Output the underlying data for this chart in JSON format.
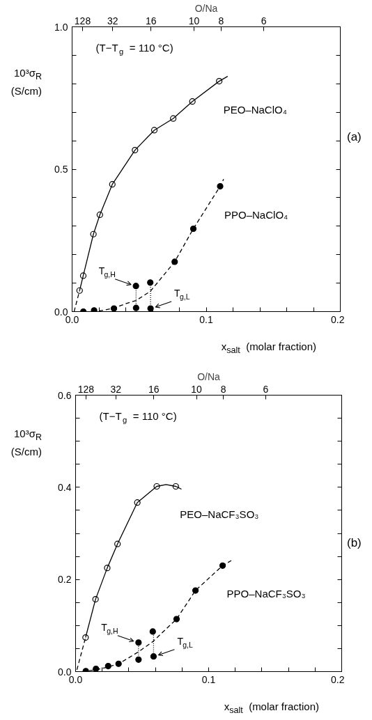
{
  "chart_data": [
    {
      "type": "scatter",
      "xlabel": "x$_{salt}$  (molar fraction)",
      "ylabel": "10³σ$_{R}$\n(S/cm)",
      "x2label": "O/Na",
      "xlim": [
        0,
        0.2
      ],
      "xticks": [
        {
          "value": 0,
          "label": "0.0"
        },
        {
          "value": 0.02,
          "label": null
        },
        {
          "value": 0.04,
          "label": null
        },
        {
          "value": 0.06,
          "label": null
        },
        {
          "value": 0.08,
          "label": null
        },
        {
          "value": 0.1,
          "label": "0.1"
        },
        {
          "value": 0.12,
          "label": null
        },
        {
          "value": 0.14,
          "label": null
        },
        {
          "value": 0.16,
          "label": null
        },
        {
          "value": 0.18,
          "label": null
        },
        {
          "value": 0.2,
          "label": "0.2"
        }
      ],
      "ylim": [
        0,
        1.0
      ],
      "yticks": [
        {
          "value": 0,
          "label": "0.0"
        },
        {
          "value": 0.1,
          "label": null
        },
        {
          "value": 0.2,
          "label": null
        },
        {
          "value": 0.3,
          "label": null
        },
        {
          "value": 0.4,
          "label": null
        },
        {
          "value": 0.5,
          "label": "0.5"
        },
        {
          "value": 0.6,
          "label": null
        },
        {
          "value": 0.7,
          "label": null
        },
        {
          "value": 0.8,
          "label": null
        },
        {
          "value": 0.9,
          "label": null
        },
        {
          "value": 1.0,
          "label": "1.0"
        }
      ],
      "series": [
        {
          "name": "PEO–NaClO₄",
          "color": "#000000",
          "marker": "circle",
          "x": [
            0.0056,
            0.0083,
            0.0159,
            0.0207,
            0.03,
            0.0469,
            0.0613,
            0.0754,
            0.0897,
            0.1097
          ],
          "values": [
            0.074,
            0.126,
            0.272,
            0.34,
            0.447,
            0.567,
            0.637,
            0.678,
            0.738,
            0.809
          ]
        },
        {
          "type": "line",
          "color": "#000000",
          "line_style": "solid",
          "x": [
            0.0056,
            0.0083,
            0.0159,
            0.0207,
            0.03,
            0.0469,
            0.0613,
            0.0754,
            0.0897,
            0.1097,
            0.116
          ],
          "values": [
            0.074,
            0.126,
            0.272,
            0.34,
            0.447,
            0.567,
            0.637,
            0.678,
            0.738,
            0.809,
            0.826
          ]
        },
        {
          "type": "line",
          "color": "#000000",
          "line_style": "dashed",
          "x": [
            0.0015,
            0.0056
          ],
          "values": [
            0.0,
            0.074
          ]
        },
        {
          "name": "PPO–NaClO₄",
          "color": "#000000",
          "marker": "circle",
          "x": [
            0.0084,
            0.0164,
            0.0312,
            0.0477,
            0.0476,
            0.0585,
            0.0583,
            0.0765,
            0.0904,
            0.1104
          ],
          "values": [
            0.0,
            0.004,
            0.011,
            0.013,
            0.09,
            0.011,
            0.102,
            0.175,
            0.291,
            0.44
          ]
        },
        {
          "type": "line",
          "color": "#000000",
          "line_style": "dashed",
          "x": [
            0.02,
            0.0312,
            0.04,
            0.0477,
            0.0583,
            0.0765,
            0.0904,
            0.1104,
            0.113
          ],
          "values": [
            0.002,
            0.012,
            0.028,
            0.039,
            0.071,
            0.175,
            0.291,
            0.44,
            0.465
          ]
        },
        {
          "type": "line",
          "color": "#000000",
          "line_style": "dotted",
          "x": [
            0.0477,
            0.0477
          ],
          "values": [
            0.013,
            0.09
          ]
        },
        {
          "type": "line",
          "color": "#000000",
          "line_style": "dotted",
          "x": [
            0.0585,
            0.0585
          ],
          "values": [
            0.011,
            0.102
          ]
        }
      ],
      "annotations": [
        "(T−T$_{g}$ = 110 °C)",
        "(a)",
        {
          "text": "T$_{g,H}$",
          "x": 0.0476,
          "y": 0.09
        },
        {
          "text": "T$_{g,L}$",
          "x": 0.0585,
          "y": 0.011
        },
        "128",
        "32",
        "16",
        "10",
        "8",
        "6"
      ]
    },
    {
      "type": "scatter",
      "xlabel": "x$_{salt}$  (molar fraction)",
      "ylabel": "10³σ$_{R}$\n(S/cm)",
      "x2label": "O/Na",
      "xlim": [
        0,
        0.2
      ],
      "xticks": [
        {
          "value": 0,
          "label": "0.0"
        },
        {
          "value": 0.02,
          "label": null
        },
        {
          "value": 0.04,
          "label": null
        },
        {
          "value": 0.06,
          "label": null
        },
        {
          "value": 0.08,
          "label": null
        },
        {
          "value": 0.1,
          "label": "0.1"
        },
        {
          "value": 0.12,
          "label": null
        },
        {
          "value": 0.14,
          "label": null
        },
        {
          "value": 0.16,
          "label": null
        },
        {
          "value": 0.18,
          "label": null
        },
        {
          "value": 0.2,
          "label": "0.2"
        }
      ],
      "ylim": [
        0,
        0.6
      ],
      "yticks": [
        {
          "value": 0,
          "label": "0.0"
        },
        {
          "value": 0.05,
          "label": null
        },
        {
          "value": 0.1,
          "label": null
        },
        {
          "value": 0.15,
          "label": null
        },
        {
          "value": 0.2,
          "label": "0.2"
        },
        {
          "value": 0.25,
          "label": null
        },
        {
          "value": 0.3,
          "label": null
        },
        {
          "value": 0.35,
          "label": null
        },
        {
          "value": 0.4,
          "label": "0.4"
        },
        {
          "value": 0.45,
          "label": null
        },
        {
          "value": 0.5,
          "label": null
        },
        {
          "value": 0.55,
          "label": null
        },
        {
          "value": 0.6,
          "label": "0.6"
        }
      ],
      "series": [
        {
          "name": "PEO–NaCF₃SO₃",
          "color": "#000000",
          "marker": "circle",
          "x": [
            0.0075,
            0.015,
            0.0238,
            0.0315,
            0.0464,
            0.061,
            0.0753
          ],
          "values": [
            0.074,
            0.157,
            0.225,
            0.277,
            0.367,
            0.402,
            0.402
          ]
        },
        {
          "type": "line",
          "color": "#000000",
          "line_style": "solid",
          "x": [
            0.0075,
            0.015,
            0.0238,
            0.0315,
            0.0464,
            0.061,
            0.068,
            0.0753,
            0.0796
          ],
          "values": [
            0.074,
            0.157,
            0.225,
            0.277,
            0.367,
            0.402,
            0.406,
            0.402,
            0.396
          ]
        },
        {
          "type": "line",
          "color": "#000000",
          "line_style": "dashed",
          "x": [
            0.001,
            0.0075
          ],
          "values": [
            0.004,
            0.074
          ]
        },
        {
          "name": "PPO–NaCF₃SO₃",
          "color": "#000000",
          "marker": "circle",
          "x": [
            0.0077,
            0.0153,
            0.0245,
            0.0323,
            0.0473,
            0.0473,
            0.0586,
            0.058,
            0.0759,
            0.0901,
            0.1105
          ],
          "values": [
            0.001,
            0.006,
            0.012,
            0.017,
            0.026,
            0.063,
            0.033,
            0.087,
            0.114,
            0.176,
            0.23
          ]
        },
        {
          "type": "line",
          "color": "#000000",
          "line_style": "dashed",
          "x": [
            0.005,
            0.0153,
            0.0245,
            0.0323,
            0.04,
            0.0473,
            0.058,
            0.0759,
            0.0901,
            0.1105,
            0.117
          ],
          "values": [
            0.0,
            0.004,
            0.01,
            0.017,
            0.03,
            0.043,
            0.065,
            0.114,
            0.176,
            0.23,
            0.241
          ]
        },
        {
          "type": "line",
          "color": "#000000",
          "line_style": "dotted",
          "x": [
            0.0473,
            0.0473
          ],
          "values": [
            0.026,
            0.063
          ]
        },
        {
          "type": "line",
          "color": "#000000",
          "line_style": "dotted",
          "x": [
            0.0586,
            0.0586
          ],
          "values": [
            0.033,
            0.087
          ]
        }
      ],
      "annotations": [
        "(T−T$_{g}$ = 110 °C)",
        "(b)",
        {
          "text": "T$_{g,H}$",
          "x": 0.0473,
          "y": 0.063
        },
        {
          "text": "T$_{g,L}$",
          "x": 0.0586,
          "y": 0.033
        },
        "128",
        "32",
        "16",
        "10",
        "8",
        "6"
      ]
    }
  ]
}
